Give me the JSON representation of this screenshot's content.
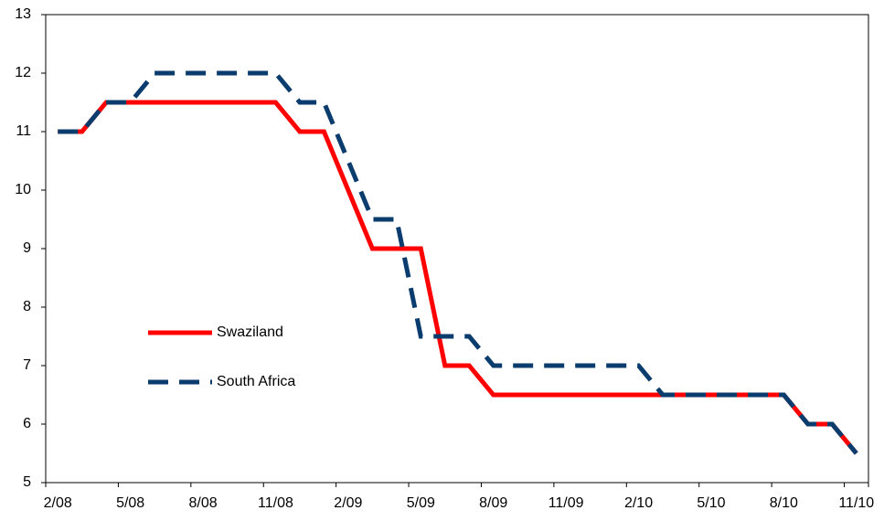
{
  "chart_data": {
    "type": "line",
    "categories": [
      "2/08",
      null,
      null,
      "5/08",
      null,
      null,
      "8/08",
      null,
      null,
      "11/08",
      null,
      null,
      "2/09",
      null,
      null,
      "5/09",
      null,
      null,
      "8/09",
      null,
      null,
      "11/09",
      null,
      null,
      "2/10",
      null,
      null,
      "5/10",
      null,
      null,
      "8/10",
      null,
      null,
      "11/10"
    ],
    "series": [
      {
        "name": "Swaziland",
        "color": "#ff0000",
        "dash": false,
        "values": [
          11,
          11,
          11.5,
          11.5,
          11.5,
          11.5,
          11.5,
          11.5,
          11.5,
          11.5,
          11,
          11,
          10,
          9,
          9,
          9,
          7,
          7,
          6.5,
          6.5,
          6.5,
          6.5,
          6.5,
          6.5,
          6.5,
          6.5,
          6.5,
          6.5,
          6.5,
          6.5,
          6.5,
          6,
          6,
          5.5
        ]
      },
      {
        "name": "South Africa",
        "color": "#0b3c6e",
        "dash": true,
        "values": [
          11,
          11,
          11.5,
          11.5,
          12,
          12,
          12,
          12,
          12,
          12,
          11.5,
          11.5,
          10.5,
          9.5,
          9.5,
          7.5,
          7.5,
          7.5,
          7,
          7,
          7,
          7,
          7,
          7,
          7,
          6.5,
          6.5,
          6.5,
          6.5,
          6.5,
          6.5,
          6,
          6,
          5.5
        ]
      }
    ],
    "ylim": [
      5,
      13
    ],
    "yticks": [
      5,
      6,
      7,
      8,
      9,
      10,
      11,
      12,
      13
    ]
  }
}
